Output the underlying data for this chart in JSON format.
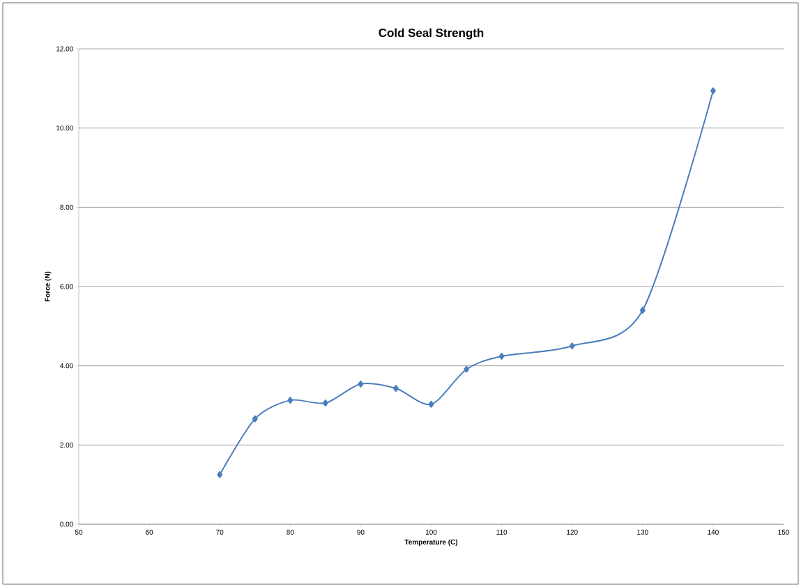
{
  "chart_data": {
    "type": "line",
    "title": "Cold Seal Strength",
    "xlabel": "Temperature (C)",
    "ylabel": "Force (N)",
    "x": [
      70,
      75,
      80,
      85,
      90,
      95,
      100,
      105,
      110,
      120,
      130,
      140
    ],
    "series": [
      {
        "color": "#4a7ebb",
        "values": [
          1.25,
          2.66,
          3.13,
          3.06,
          3.54,
          3.43,
          3.03,
          3.91,
          4.24,
          4.5,
          5.4,
          10.94
        ]
      }
    ],
    "xlim": [
      50,
      150
    ],
    "xticks": [
      50,
      60,
      70,
      80,
      90,
      100,
      110,
      120,
      130,
      140,
      150
    ],
    "ylim": [
      0,
      12
    ],
    "yticks": [
      {
        "value": 0,
        "label": "0.00"
      },
      {
        "value": 2,
        "label": "2.00"
      },
      {
        "value": 4,
        "label": "4.00"
      },
      {
        "value": 6,
        "label": "6.00"
      },
      {
        "value": 8,
        "label": "8.00"
      },
      {
        "value": 10,
        "label": "10.00"
      },
      {
        "value": 12,
        "label": "12.00"
      }
    ],
    "grid": "y",
    "marker": "diamond",
    "line_style": "solid"
  }
}
